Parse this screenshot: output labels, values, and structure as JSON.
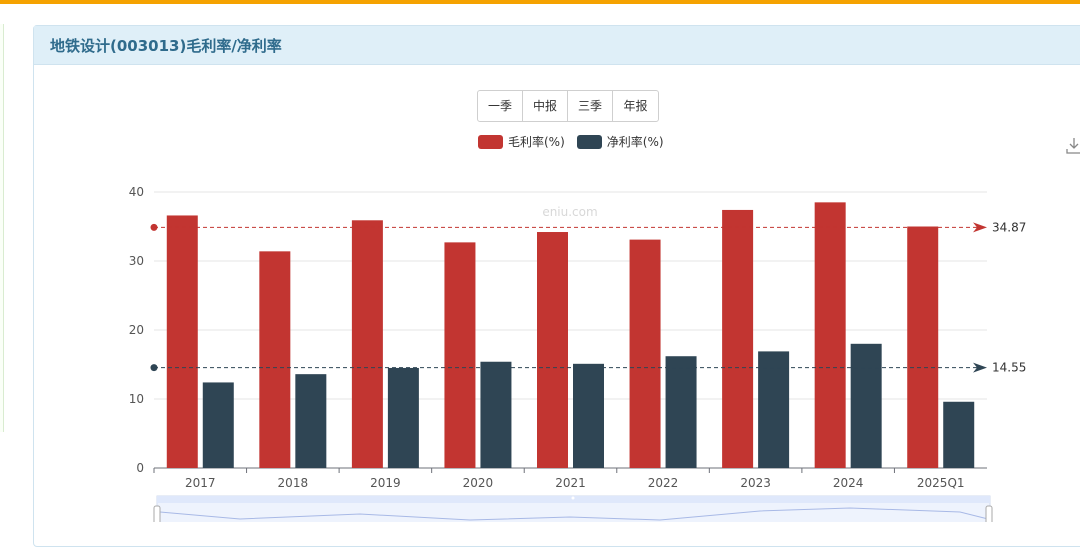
{
  "title": "地铁设计(003013)毛利率/净利率",
  "period_buttons": [
    "一季",
    "中报",
    "三季",
    "年报"
  ],
  "watermark": "eniu.com",
  "colors": {
    "gross": "#c23531",
    "net": "#2f4554",
    "accent": "#f5a200",
    "header_bg": "#dfeff8"
  },
  "icons": {
    "download": "download-icon"
  },
  "chart_data": {
    "type": "bar",
    "categories": [
      "2017",
      "2018",
      "2019",
      "2020",
      "2021",
      "2022",
      "2023",
      "2024",
      "2025Q1"
    ],
    "series": [
      {
        "name": "毛利率(%)",
        "values": [
          36.6,
          31.4,
          35.9,
          32.7,
          34.2,
          33.1,
          37.4,
          38.5,
          35.0
        ]
      },
      {
        "name": "净利率(%)",
        "values": [
          12.4,
          13.6,
          14.5,
          15.4,
          15.1,
          16.2,
          16.9,
          18.0,
          9.6
        ]
      }
    ],
    "average_lines": [
      {
        "series": "毛利率(%)",
        "value": 34.87,
        "label": "34.87"
      },
      {
        "series": "净利率(%)",
        "value": 14.55,
        "label": "14.55"
      }
    ],
    "ylim": [
      0,
      40
    ],
    "yticks": [
      0,
      10,
      20,
      30,
      40
    ],
    "grid": true,
    "legend": "top-center",
    "xlabel": "",
    "ylabel": ""
  }
}
